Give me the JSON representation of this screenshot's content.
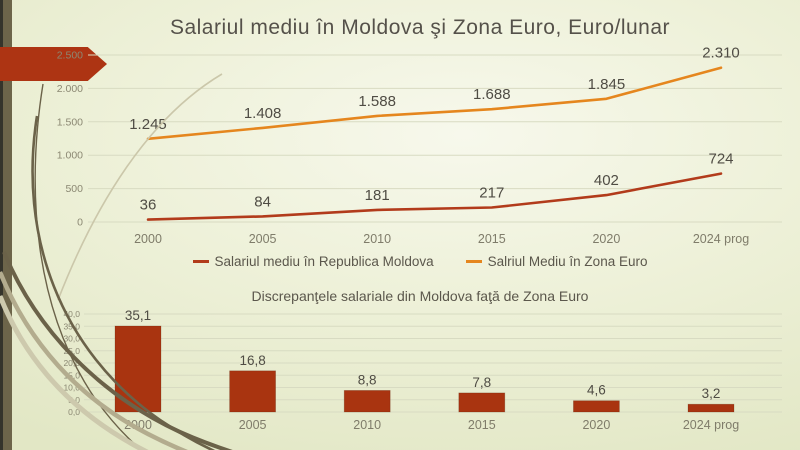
{
  "slide": {
    "title": "Salariul mediu în Moldova şi Zona Euro, Euro/lunar"
  },
  "colors": {
    "moldova_line": "#b23b1b",
    "euro_line": "#e5861e",
    "bar_fill": "#a93410",
    "arrow_banner": "#ad3413"
  },
  "chart_data": [
    {
      "id": "average-salary-lines",
      "type": "line",
      "title": "Salariul mediu în Moldova şi Zona Euro, Euro/lunar",
      "categories": [
        "2000",
        "2005",
        "2010",
        "2015",
        "2020",
        "2024 prog"
      ],
      "series": [
        {
          "name": "Salariul mediu în Republica Moldova",
          "color": "#b23b1b",
          "values": [
            36,
            84,
            181,
            217,
            402,
            724
          ],
          "labels": [
            "36",
            "84",
            "181",
            "217",
            "402",
            "724"
          ]
        },
        {
          "name": "Salriul Mediu în Zona Euro",
          "color": "#e5861e",
          "values": [
            1245,
            1408,
            1588,
            1688,
            1845,
            2310
          ],
          "labels": [
            "1.245",
            "1.408",
            "1.588",
            "1.688",
            "1.845",
            "2.310"
          ]
        }
      ],
      "y_axis": {
        "min": 0,
        "max": 2500,
        "step": 500,
        "tick_labels": [
          "0",
          "500",
          "1.000",
          "1.500",
          "2.000",
          "2.500"
        ]
      },
      "grid": true,
      "legend_position": "bottom"
    },
    {
      "id": "salary-gap-bars",
      "type": "bar",
      "title": "Discrepanţele salariale din Moldova faţă de Zona Euro",
      "categories": [
        "2000",
        "2005",
        "2010",
        "2015",
        "2020",
        "2024 prog"
      ],
      "values": [
        35.1,
        16.8,
        8.8,
        7.8,
        4.6,
        3.2
      ],
      "value_labels": [
        "35,1",
        "16,8",
        "8,8",
        "7,8",
        "4,6",
        "3,2"
      ],
      "y_axis": {
        "min": 0,
        "max": 40,
        "step": 5,
        "tick_labels": [
          "0,0",
          "5,0",
          "10,0",
          "15,0",
          "20,0",
          "25,0",
          "30,0",
          "35,0",
          "40,0"
        ]
      },
      "bar_color": "#a93410",
      "grid": true
    }
  ]
}
